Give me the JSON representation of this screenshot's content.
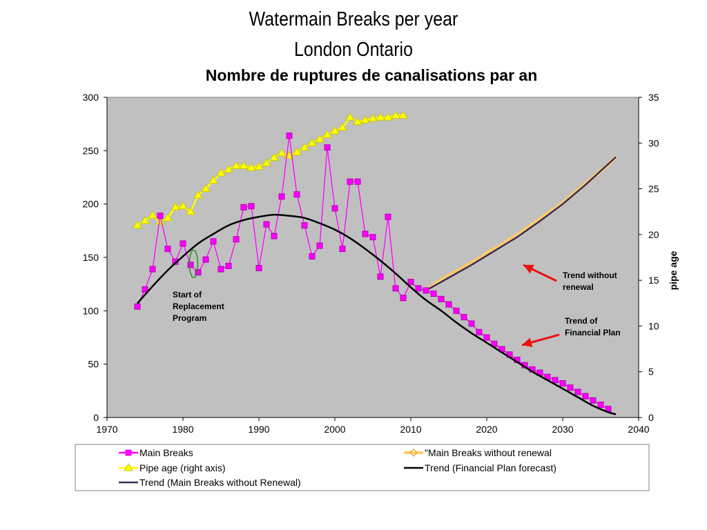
{
  "titles": {
    "line1": "Watermain Breaks per year",
    "line2": "London Ontario",
    "line3": "Nombre de ruptures de canalisations par an"
  },
  "chart_data": {
    "type": "line",
    "title": "Watermain Breaks per year",
    "subtitle": "London Ontario",
    "subtitle_fr": "Nombre de ruptures de canalisations par an",
    "xlabel": "",
    "ylabel": "",
    "y2label": "pipe age",
    "xlim": [
      1970,
      2040
    ],
    "ylim": [
      0,
      300
    ],
    "y2lim": [
      0,
      35
    ],
    "x_ticks": [
      1970,
      1980,
      1990,
      2000,
      2010,
      2020,
      2030,
      2040
    ],
    "y_ticks": [
      0,
      50,
      100,
      150,
      200,
      250,
      300
    ],
    "y2_ticks": [
      0,
      5,
      10,
      15,
      20,
      25,
      30,
      35
    ],
    "grid": false,
    "plot_background": "#c0c0c0",
    "legend_position": "bottom",
    "series": [
      {
        "name": "Main Breaks",
        "axis": "left",
        "color": "#ff00ff",
        "marker": "square",
        "x": [
          1974,
          1975,
          1976,
          1977,
          1978,
          1979,
          1980,
          1981,
          1982,
          1983,
          1984,
          1985,
          1986,
          1987,
          1988,
          1989,
          1990,
          1991,
          1992,
          1993,
          1994,
          1995,
          1996,
          1997,
          1998,
          1999,
          2000,
          2001,
          2002,
          2003,
          2004,
          2005,
          2006,
          2007,
          2008,
          2009,
          2010,
          2011,
          2012,
          2013,
          2014,
          2015,
          2016,
          2017,
          2018,
          2019,
          2020,
          2021,
          2022,
          2023,
          2024,
          2025,
          2026,
          2027,
          2028,
          2029,
          2030,
          2031,
          2032,
          2033,
          2034,
          2035,
          2036
        ],
        "y": [
          104,
          120,
          139,
          189,
          158,
          146,
          163,
          143,
          136,
          148,
          165,
          139,
          142,
          167,
          197,
          198,
          140,
          181,
          170,
          207,
          264,
          209,
          180,
          151,
          161,
          253,
          196,
          158,
          221,
          221,
          172,
          169,
          132,
          188,
          121,
          112,
          127,
          121,
          119,
          116,
          111,
          106,
          100,
          94,
          88,
          80,
          75,
          69,
          64,
          59,
          54,
          49,
          45,
          42,
          38,
          35,
          32,
          28,
          24,
          20,
          16,
          12,
          8
        ]
      },
      {
        "name": "\"Main Breaks without renewal",
        "axis": "left",
        "color": "#ffcc66",
        "marker": "diamond",
        "x": [
          2012,
          2013,
          2014,
          2015,
          2016,
          2017,
          2018,
          2019,
          2020,
          2021,
          2022,
          2023,
          2024,
          2025,
          2026,
          2027,
          2028,
          2029,
          2030,
          2031,
          2032,
          2033,
          2034,
          2035,
          2036,
          2037
        ],
        "y": [
          119,
          124,
          129,
          133,
          137,
          141,
          145,
          149,
          154,
          158,
          162,
          167,
          171,
          176,
          181,
          186,
          191,
          196,
          201,
          207,
          213,
          219,
          225,
          231,
          237,
          244
        ]
      },
      {
        "name": "Pipe age (right axis)",
        "axis": "right",
        "color": "#ffff00",
        "marker": "triangle",
        "x": [
          1974,
          1975,
          1976,
          1977,
          1978,
          1979,
          1980,
          1981,
          1982,
          1983,
          1984,
          1985,
          1986,
          1987,
          1988,
          1989,
          1990,
          1991,
          1992,
          1993,
          1994,
          1995,
          1996,
          1997,
          1998,
          1999,
          2000,
          2001,
          2002,
          2003,
          2004,
          2005,
          2006,
          2007,
          2008,
          2009
        ],
        "y": [
          21.0,
          21.5,
          22.1,
          21.4,
          21.8,
          23.0,
          23.1,
          22.5,
          24.3,
          25.0,
          25.9,
          26.7,
          27.1,
          27.5,
          27.5,
          27.3,
          27.4,
          27.8,
          28.4,
          28.9,
          28.6,
          29.0,
          29.5,
          30.0,
          30.4,
          30.9,
          31.3,
          31.7,
          32.8,
          32.3,
          32.5,
          32.7,
          32.8,
          32.8,
          33.0,
          33.0
        ]
      },
      {
        "name": "Trend (Financial Plan forecast)",
        "axis": "left",
        "color": "#000000",
        "marker": "none",
        "x": [
          1974,
          1976,
          1978,
          1980,
          1982,
          1984,
          1986,
          1988,
          1990,
          1992,
          1994,
          1996,
          1998,
          2000,
          2002,
          2004,
          2006,
          2008,
          2010,
          2012,
          2014,
          2016,
          2018,
          2020,
          2022,
          2024,
          2026,
          2028,
          2030,
          2032,
          2034,
          2036,
          2037
        ],
        "y": [
          107,
          123,
          138,
          151,
          163,
          172,
          180,
          185,
          188,
          190,
          189,
          187,
          182,
          176,
          168,
          158,
          147,
          135,
          122,
          110,
          100,
          89,
          79,
          70,
          61,
          52,
          43,
          35,
          27,
          19,
          11,
          5,
          3
        ]
      },
      {
        "name": "Trend (Main Breaks without Renewal)",
        "axis": "left",
        "color": "#3d2b5a",
        "marker": "none",
        "x": [
          2012,
          2015,
          2018,
          2021,
          2024,
          2027,
          2030,
          2033,
          2035,
          2037
        ],
        "y": [
          119,
          131,
          143,
          156,
          169,
          184,
          200,
          218,
          231,
          244
        ]
      }
    ],
    "annotations": [
      {
        "text": [
          "Start of",
          "Replacement",
          "Program"
        ],
        "x": 1981.5
      },
      {
        "text": [
          "Trend without",
          "renewal"
        ],
        "points_to": "Trend (Main Breaks without Renewal)"
      },
      {
        "text": [
          "Trend of",
          "Financial Plan"
        ],
        "points_to": "Trend (Financial Plan forecast)"
      }
    ]
  }
}
